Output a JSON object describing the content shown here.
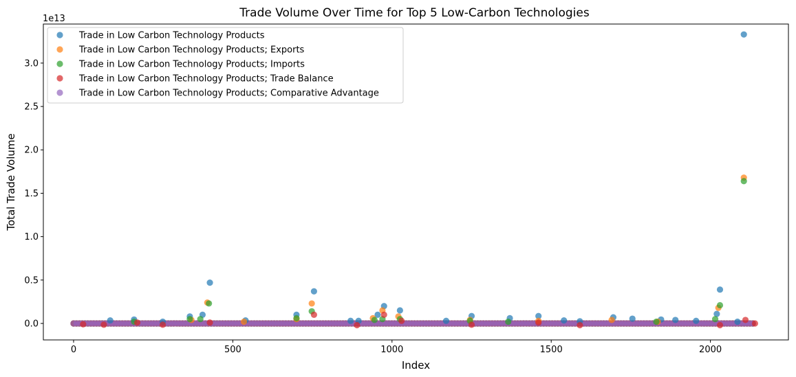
{
  "chart_data": {
    "type": "scatter",
    "title": "Trade Volume Over Time for Top 5 Low-Carbon Technologies",
    "xlabel": "Index",
    "ylabel": "Total Trade Volume",
    "y_offset_label": "1e13",
    "xlim": [
      -95,
      2245
    ],
    "ylim": [
      -0.19,
      3.45
    ],
    "x_ticks": [
      0,
      500,
      1000,
      1500,
      2000
    ],
    "x_tick_labels": [
      "0",
      "500",
      "1000",
      "1500",
      "2000"
    ],
    "y_ticks": [
      0.0,
      0.5,
      1.0,
      1.5,
      2.0,
      2.5,
      3.0
    ],
    "y_tick_labels": [
      "0.0",
      "0.5",
      "1.0",
      "1.5",
      "2.0",
      "2.5",
      "3.0"
    ],
    "grid": false,
    "legend_position": "top-left",
    "x_range": [
      0,
      2140
    ],
    "series": [
      {
        "name": "Trade in Low Carbon Technology Products",
        "color": "#1f77b4",
        "points": [
          [
            115,
            0.035
          ],
          [
            190,
            0.045
          ],
          [
            280,
            0.02
          ],
          [
            365,
            0.08
          ],
          [
            405,
            0.1
          ],
          [
            428,
            0.47
          ],
          [
            540,
            0.035
          ],
          [
            700,
            0.1
          ],
          [
            755,
            0.37
          ],
          [
            870,
            0.03
          ],
          [
            895,
            0.03
          ],
          [
            955,
            0.1
          ],
          [
            975,
            0.2
          ],
          [
            1025,
            0.15
          ],
          [
            1170,
            0.03
          ],
          [
            1250,
            0.085
          ],
          [
            1370,
            0.06
          ],
          [
            1460,
            0.085
          ],
          [
            1540,
            0.035
          ],
          [
            1590,
            0.025
          ],
          [
            1695,
            0.07
          ],
          [
            1755,
            0.055
          ],
          [
            1845,
            0.045
          ],
          [
            1890,
            0.04
          ],
          [
            1955,
            0.03
          ],
          [
            2020,
            0.11
          ],
          [
            2030,
            0.39
          ],
          [
            2085,
            0.02
          ],
          [
            2105,
            3.33
          ]
        ]
      },
      {
        "name": "Trade in Low Carbon Technology Products; Exports",
        "color": "#ff7f0e",
        "points": [
          [
            370,
            0.04
          ],
          [
            420,
            0.24
          ],
          [
            535,
            0.02
          ],
          [
            700,
            0.05
          ],
          [
            748,
            0.23
          ],
          [
            940,
            0.06
          ],
          [
            970,
            0.15
          ],
          [
            1020,
            0.08
          ],
          [
            1245,
            0.04
          ],
          [
            1460,
            0.03
          ],
          [
            1690,
            0.04
          ],
          [
            1835,
            0.02
          ],
          [
            2025,
            0.18
          ],
          [
            2105,
            1.68
          ]
        ]
      },
      {
        "name": "Trade in Low Carbon Technology Products; Imports",
        "color": "#2ca02c",
        "points": [
          [
            190,
            0.02
          ],
          [
            365,
            0.05
          ],
          [
            398,
            0.05
          ],
          [
            425,
            0.23
          ],
          [
            700,
            0.06
          ],
          [
            748,
            0.14
          ],
          [
            945,
            0.04
          ],
          [
            970,
            0.05
          ],
          [
            1025,
            0.05
          ],
          [
            1245,
            0.03
          ],
          [
            1365,
            0.02
          ],
          [
            1830,
            0.02
          ],
          [
            2015,
            0.05
          ],
          [
            2030,
            0.21
          ],
          [
            2105,
            1.64
          ]
        ]
      },
      {
        "name": "Trade in Low Carbon Technology Products; Trade Balance",
        "color": "#d62728",
        "points": [
          [
            30,
            -0.01
          ],
          [
            95,
            -0.015
          ],
          [
            200,
            0.01
          ],
          [
            280,
            -0.015
          ],
          [
            428,
            0.01
          ],
          [
            755,
            0.1
          ],
          [
            890,
            -0.02
          ],
          [
            975,
            0.1
          ],
          [
            1030,
            0.03
          ],
          [
            1250,
            -0.015
          ],
          [
            1460,
            0.01
          ],
          [
            1590,
            -0.02
          ],
          [
            2030,
            -0.02
          ],
          [
            2110,
            0.04
          ],
          [
            2140,
            0.0
          ]
        ]
      },
      {
        "name": "Trade in Low Carbon Technology Products; Comparative Advantage",
        "color": "#9467bd",
        "baseline": true
      }
    ]
  }
}
